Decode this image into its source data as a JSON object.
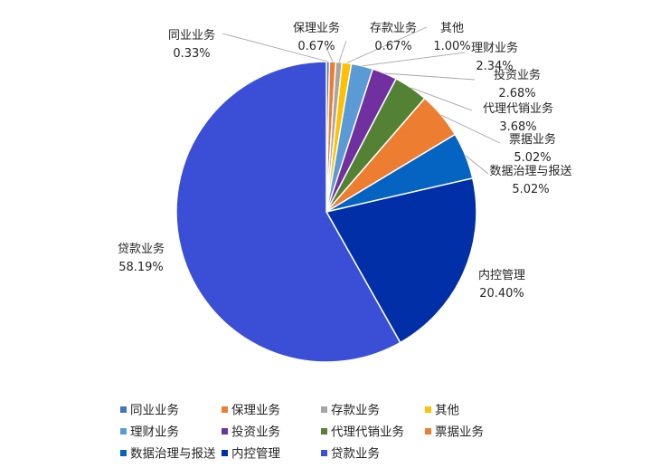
{
  "chart_data": {
    "type": "pie",
    "title": "",
    "start_angle_deg": 0,
    "direction": "clockwise",
    "slices": [
      {
        "name": "同业业务",
        "value": 0.33,
        "label": "0.33%",
        "color": "#4472c4"
      },
      {
        "name": "保理业务",
        "value": 0.67,
        "label": "0.67%",
        "color": "#ed7d31"
      },
      {
        "name": "存款业务",
        "value": 0.67,
        "label": "0.67%",
        "color": "#a5a5a5"
      },
      {
        "name": "其他",
        "value": 1.0,
        "label": "1.00%",
        "color": "#ffc000"
      },
      {
        "name": "理财业务",
        "value": 2.34,
        "label": "2.34%",
        "color": "#5b9bd5"
      },
      {
        "name": "投资业务",
        "value": 2.68,
        "label": "2.68%",
        "color": "#7030a0"
      },
      {
        "name": "代理代销业务",
        "value": 3.68,
        "label": "3.68%",
        "color": "#548235"
      },
      {
        "name": "票据业务",
        "value": 5.02,
        "label": "5.02%",
        "color": "#ed7d31"
      },
      {
        "name": "数据治理与报送",
        "value": 5.02,
        "label": "5.02%",
        "color": "#0563c1"
      },
      {
        "name": "内控管理",
        "value": 20.4,
        "label": "20.40%",
        "color": "#002fa7"
      },
      {
        "name": "贷款业务",
        "value": 58.19,
        "label": "58.19%",
        "color": "#3a4fd6"
      }
    ],
    "legend": {
      "position": "bottom",
      "rows": [
        [
          "同业业务",
          "保理业务",
          "存款业务",
          "其他"
        ],
        [
          "理财业务",
          "投资业务",
          "代理代销业务",
          "票据业务"
        ],
        [
          "数据治理与报送",
          "内控管理",
          "贷款业务"
        ]
      ]
    }
  }
}
